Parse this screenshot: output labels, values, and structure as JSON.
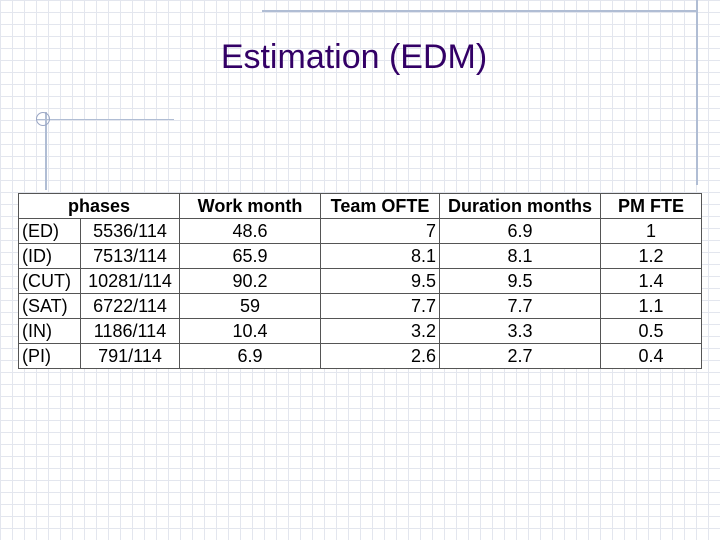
{
  "slide": {
    "title": "Estimation (EDM)"
  },
  "table": {
    "headers": {
      "phases": "phases",
      "work_month": "Work month",
      "team_ofte": "Team OFTE",
      "duration_months": "Duration months",
      "pm_fte": "PM FTE"
    },
    "rows": [
      {
        "phase": "(ED)",
        "ratio": "5536/114",
        "work_month": "48.6",
        "team_ofte": "7",
        "duration": "6.9",
        "pm_fte": "1"
      },
      {
        "phase": "(ID)",
        "ratio": "7513/114",
        "work_month": "65.9",
        "team_ofte": "8.1",
        "duration": "8.1",
        "pm_fte": "1.2"
      },
      {
        "phase": "(CUT)",
        "ratio": "10281/114",
        "work_month": "90.2",
        "team_ofte": "9.5",
        "duration": "9.5",
        "pm_fte": "1.4"
      },
      {
        "phase": "(SAT)",
        "ratio": "6722/114",
        "work_month": "59",
        "team_ofte": "7.7",
        "duration": "7.7",
        "pm_fte": "1.1"
      },
      {
        "phase": "(IN)",
        "ratio": "1186/114",
        "work_month": "10.4",
        "team_ofte": "3.2",
        "duration": "3.3",
        "pm_fte": "0.5"
      },
      {
        "phase": "(PI)",
        "ratio": "791/114",
        "work_month": "6.9",
        "team_ofte": "2.6",
        "duration": "2.7",
        "pm_fte": "0.4"
      }
    ]
  }
}
